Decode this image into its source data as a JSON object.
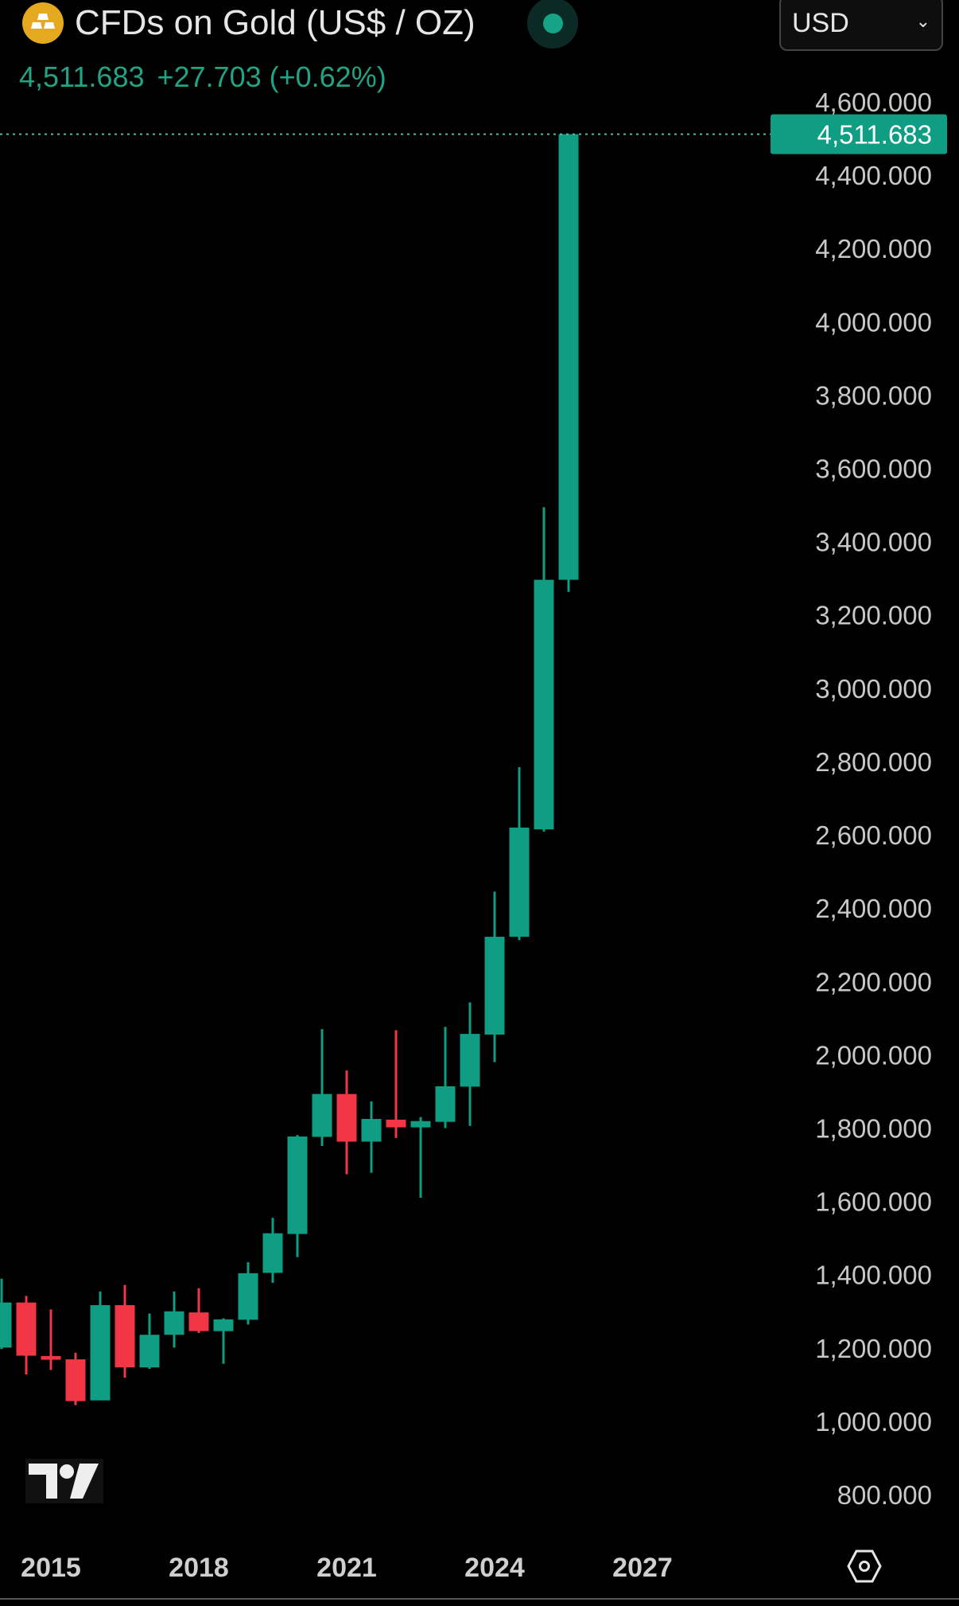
{
  "header": {
    "title": "CFDs on Gold (US$ / OZ)",
    "currency": "USD",
    "price": "4,511.683",
    "change": "+27.703",
    "change_pct": "(+0.62%)",
    "market_status": "open"
  },
  "colors": {
    "up": "#0f9d84",
    "down": "#f23645",
    "background": "#000000",
    "gold_icon": "#e5a920"
  },
  "chart_data": {
    "type": "candlestick",
    "period": "6 months",
    "ylim": [
      800,
      4600
    ],
    "yticks": [
      "4,600.000",
      "4,400.000",
      "4,200.000",
      "4,000.000",
      "3,800.000",
      "3,600.000",
      "3,400.000",
      "3,200.000",
      "3,000.000",
      "2,800.000",
      "2,600.000",
      "2,400.000",
      "2,200.000",
      "2,000.000",
      "1,800.000",
      "1,600.000",
      "1,400.000",
      "1,200.000",
      "1,000.000",
      "800.000"
    ],
    "xticks": [
      "2015",
      "2018",
      "2021",
      "2024",
      "2027"
    ],
    "last_price_label": "4,511.683",
    "candles": [
      {
        "t": "2014-H1",
        "o": 1201,
        "h": 1389,
        "l": 1197,
        "c": 1324
      },
      {
        "t": "2014-H2",
        "o": 1324,
        "h": 1342,
        "l": 1128,
        "c": 1179
      },
      {
        "t": "2015-H1",
        "o": 1178,
        "h": 1305,
        "l": 1140,
        "c": 1168
      },
      {
        "t": "2015-H2",
        "o": 1169,
        "h": 1187,
        "l": 1044,
        "c": 1055
      },
      {
        "t": "2016-H1",
        "o": 1057,
        "h": 1354,
        "l": 1057,
        "c": 1317
      },
      {
        "t": "2016-H2",
        "o": 1317,
        "h": 1372,
        "l": 1119,
        "c": 1147
      },
      {
        "t": "2017-H1",
        "o": 1147,
        "h": 1294,
        "l": 1143,
        "c": 1236
      },
      {
        "t": "2017-H2",
        "o": 1236,
        "h": 1354,
        "l": 1201,
        "c": 1300
      },
      {
        "t": "2018-H1",
        "o": 1297,
        "h": 1363,
        "l": 1241,
        "c": 1246
      },
      {
        "t": "2018-H2",
        "o": 1246,
        "h": 1281,
        "l": 1157,
        "c": 1278
      },
      {
        "t": "2019-H1",
        "o": 1277,
        "h": 1434,
        "l": 1264,
        "c": 1404
      },
      {
        "t": "2019-H2",
        "o": 1405,
        "h": 1555,
        "l": 1378,
        "c": 1513
      },
      {
        "t": "2020-H1",
        "o": 1511,
        "h": 1781,
        "l": 1448,
        "c": 1777
      },
      {
        "t": "2020-H2",
        "o": 1776,
        "h": 2070,
        "l": 1751,
        "c": 1893
      },
      {
        "t": "2021-H1",
        "o": 1893,
        "h": 1957,
        "l": 1674,
        "c": 1763
      },
      {
        "t": "2021-H2",
        "o": 1763,
        "h": 1873,
        "l": 1678,
        "c": 1825
      },
      {
        "t": "2022-H1",
        "o": 1823,
        "h": 2067,
        "l": 1773,
        "c": 1802
      },
      {
        "t": "2022-H2",
        "o": 1802,
        "h": 1830,
        "l": 1610,
        "c": 1819
      },
      {
        "t": "2023-H1",
        "o": 1817,
        "h": 2076,
        "l": 1800,
        "c": 1914
      },
      {
        "t": "2023-H2",
        "o": 1913,
        "h": 2143,
        "l": 1806,
        "c": 2057
      },
      {
        "t": "2024-H1",
        "o": 2055,
        "h": 2445,
        "l": 1980,
        "c": 2322
      },
      {
        "t": "2024-H2",
        "o": 2322,
        "h": 2785,
        "l": 2313,
        "c": 2620
      },
      {
        "t": "2025-H1",
        "o": 2615,
        "h": 3494,
        "l": 2609,
        "c": 3296
      },
      {
        "t": "2025-H2",
        "o": 3296,
        "h": 4512,
        "l": 3263,
        "c": 4511.683
      }
    ]
  }
}
